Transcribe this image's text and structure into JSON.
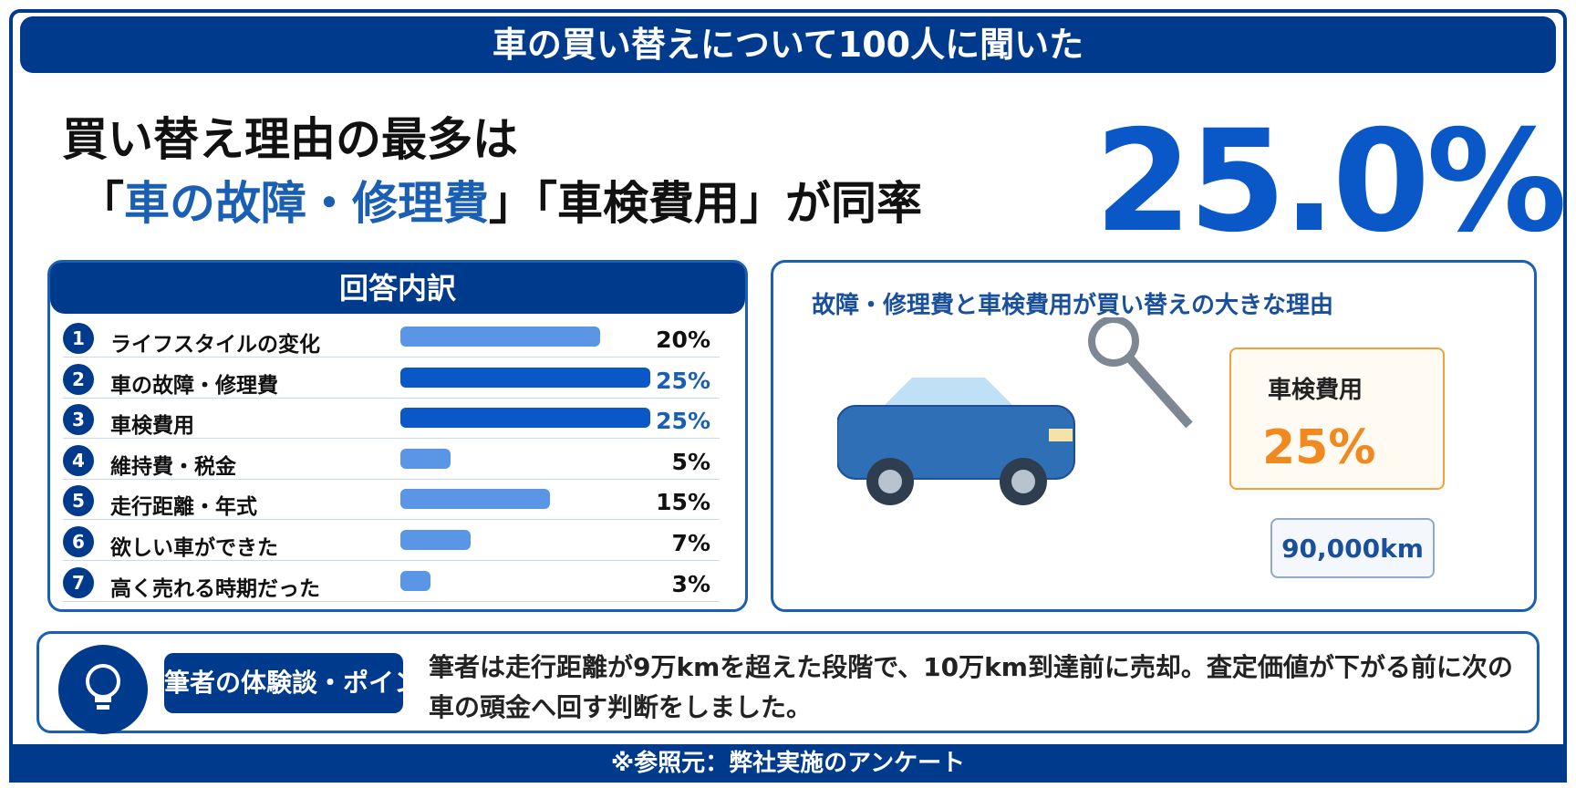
{
  "header": {
    "title": "車の買い替えについて100人に聞いた"
  },
  "headline": {
    "line1": "買い替え理由の最多は",
    "line2_open": "「",
    "line2_highlight": "車の故障・修理費",
    "line2_rest": "」「車検費用」が同率",
    "big_value": "25.0%"
  },
  "breakdown": {
    "title": "回答内訳",
    "items": [
      {
        "num": "1",
        "label": "ライフスタイルの変化",
        "pct": "20%",
        "value": 20,
        "highlight": false
      },
      {
        "num": "2",
        "label": "車の故障・修理費",
        "pct": "25%",
        "value": 25,
        "highlight": true
      },
      {
        "num": "3",
        "label": "車検費用",
        "pct": "25%",
        "value": 25,
        "highlight": true
      },
      {
        "num": "4",
        "label": "維持費・税金",
        "pct": "5%",
        "value": 5,
        "highlight": false
      },
      {
        "num": "5",
        "label": "走行距離・年式",
        "pct": "15%",
        "value": 15,
        "highlight": false
      },
      {
        "num": "6",
        "label": "欲しい車ができた",
        "pct": "7%",
        "value": 7,
        "highlight": false
      },
      {
        "num": "7",
        "label": "高く売れる時期だった",
        "pct": "3%",
        "value": 3,
        "highlight": false
      }
    ]
  },
  "illustration": {
    "title": "故障・修理費と車検費用が買い替えの大きな理由",
    "card_label": "車検費用",
    "card_value": "25%",
    "km_label": "90,000km"
  },
  "note": {
    "tag": "筆者の体験談・ポイント",
    "text": "筆者は走行距離が9万kmを超えた段階で、10万km到達前に売却。査定価値が下がる前に次の車の頭金へ回す判断をしました。"
  },
  "footer": {
    "source": "※参照元：弊社実施のアンケート"
  },
  "colors": {
    "navy": "#003a8c",
    "highlight_bar": "#0a58c8",
    "normal_bar": "#5a95e6",
    "highlight_text": "#1a5fb4",
    "orange": "#f08a20"
  }
}
